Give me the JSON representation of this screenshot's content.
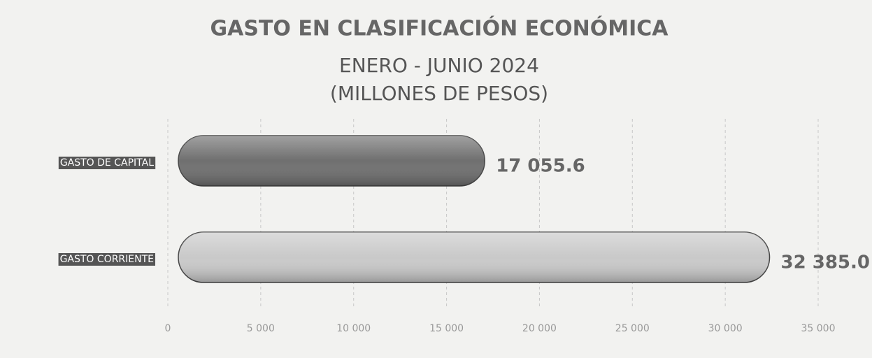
{
  "chart_data": {
    "type": "bar",
    "orientation": "horizontal",
    "title": "GASTO EN CLASIFICACIÓN ECONÓMICA",
    "subtitle": [
      "ENERO  - JUNIO 2024",
      "(MILLONES DE PESOS)"
    ],
    "categories": [
      "GASTO DE CAPITAL",
      "GASTO CORRIENTE"
    ],
    "values": [
      17055.6,
      32385.0
    ],
    "value_labels": [
      "17 055.6",
      "32 385.0"
    ],
    "colors": [
      "#6f6f6f",
      "#c9c9c9"
    ],
    "xlim": [
      0,
      35000
    ],
    "xticks": [
      0,
      {
        "value": 5000,
        "label": "5 000"
      },
      {
        "value": 10000,
        "label": "10 000"
      },
      {
        "value": 15000,
        "label": "15 000"
      },
      {
        "value": 20000,
        "label": "20 000"
      },
      {
        "value": 25000,
        "label": "25 000"
      },
      {
        "value": 30000,
        "label": "30 000"
      },
      {
        "value": 35000,
        "label": "35 000"
      }
    ],
    "grid": true
  }
}
